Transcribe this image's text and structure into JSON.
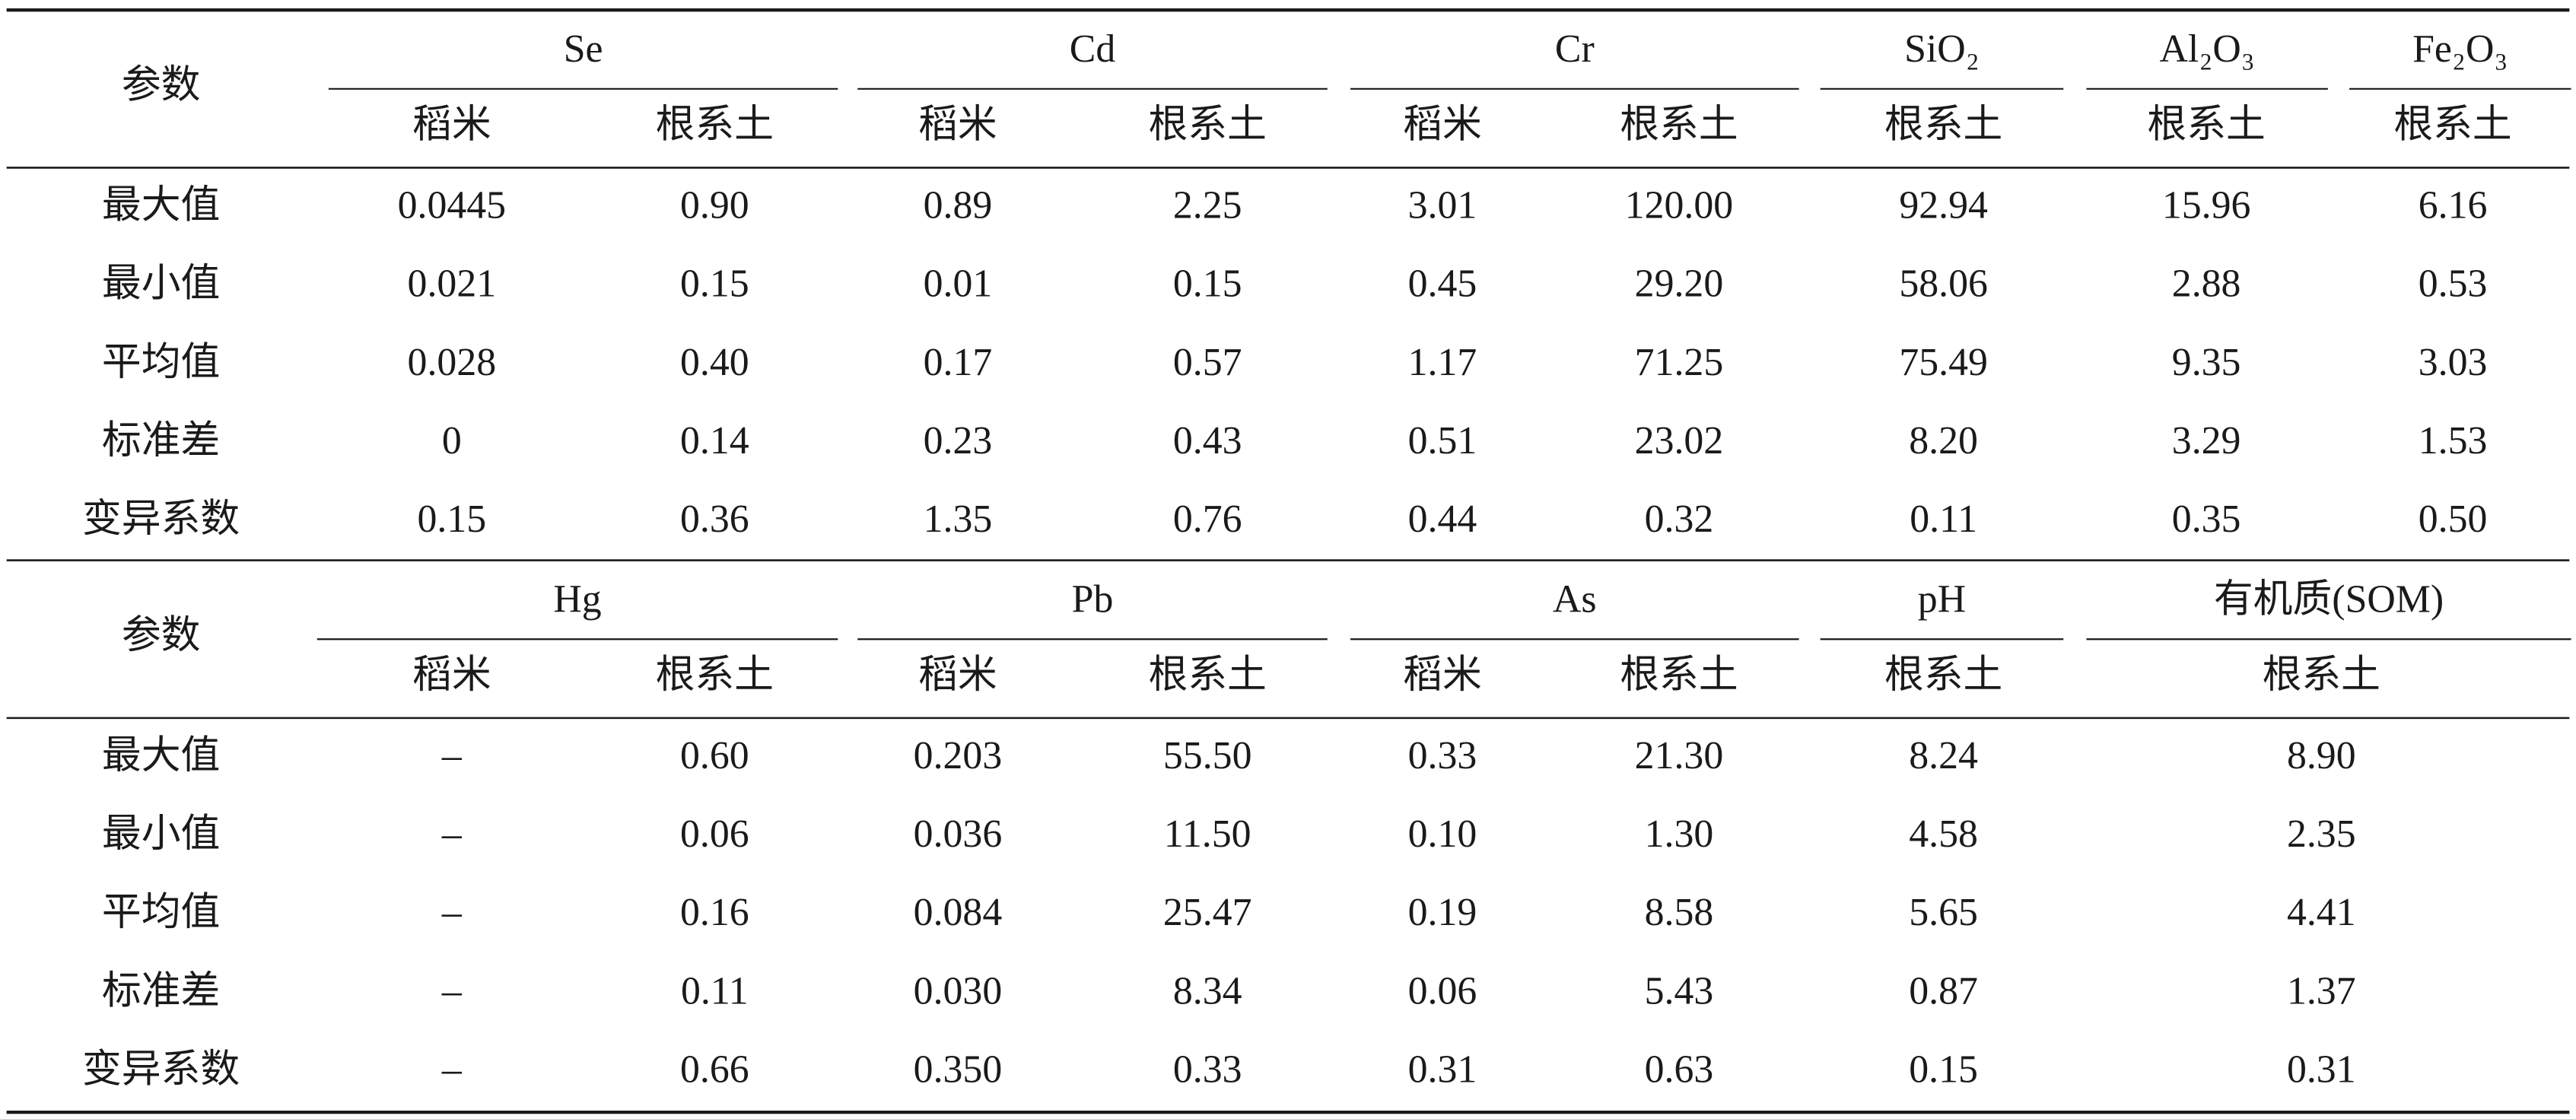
{
  "tables": [
    {
      "header": {
        "param": "参数",
        "groups": [
          {
            "name": "Se",
            "subs": [
              "稻米",
              "根系土"
            ]
          },
          {
            "name": "Cd",
            "subs": [
              "稻米",
              "根系土"
            ]
          },
          {
            "name": "Cr",
            "subs": [
              "稻米",
              "根系土"
            ]
          },
          {
            "name": "SiO₂",
            "subs": [
              "根系土"
            ]
          },
          {
            "name": "Al₂O₃",
            "subs": [
              "根系土"
            ]
          },
          {
            "name": "Fe₂O₃",
            "subs": [
              "根系土"
            ]
          }
        ]
      },
      "rows": [
        {
          "label": "最大值",
          "values": [
            "0.0445",
            "0.90",
            "0.89",
            "2.25",
            "3.01",
            "120.00",
            "92.94",
            "15.96",
            "6.16"
          ]
        },
        {
          "label": "最小值",
          "values": [
            "0.021",
            "0.15",
            "0.01",
            "0.15",
            "0.45",
            "29.20",
            "58.06",
            "2.88",
            "0.53"
          ]
        },
        {
          "label": "平均值",
          "values": [
            "0.028",
            "0.40",
            "0.17",
            "0.57",
            "1.17",
            "71.25",
            "75.49",
            "9.35",
            "3.03"
          ]
        },
        {
          "label": "标准差",
          "values": [
            "0",
            "0.14",
            "0.23",
            "0.43",
            "0.51",
            "23.02",
            "8.20",
            "3.29",
            "1.53"
          ]
        },
        {
          "label": "变异系数",
          "values": [
            "0.15",
            "0.36",
            "1.35",
            "0.76",
            "0.44",
            "0.32",
            "0.11",
            "0.35",
            "0.50"
          ]
        }
      ]
    },
    {
      "header": {
        "param": "参数",
        "groups": [
          {
            "name": "Hg",
            "subs": [
              "稻米",
              "根系土"
            ]
          },
          {
            "name": "Pb",
            "subs": [
              "稻米",
              "根系土"
            ]
          },
          {
            "name": "As",
            "subs": [
              "稻米",
              "根系土"
            ]
          },
          {
            "name": "pH",
            "subs": [
              "根系土"
            ]
          },
          {
            "name": "有机质(SOM)",
            "subs": [
              "根系土"
            ]
          }
        ]
      },
      "rows": [
        {
          "label": "最大值",
          "values": [
            "–",
            "0.60",
            "0.203",
            "55.50",
            "0.33",
            "21.30",
            "8.24",
            "8.90"
          ]
        },
        {
          "label": "最小值",
          "values": [
            "–",
            "0.06",
            "0.036",
            "11.50",
            "0.10",
            "1.30",
            "4.58",
            "2.35"
          ]
        },
        {
          "label": "平均值",
          "values": [
            "–",
            "0.16",
            "0.084",
            "25.47",
            "0.19",
            "8.58",
            "5.65",
            "4.41"
          ]
        },
        {
          "label": "标准差",
          "values": [
            "–",
            "0.11",
            "0.030",
            "8.34",
            "0.06",
            "5.43",
            "0.87",
            "1.37"
          ]
        },
        {
          "label": "变异系数",
          "values": [
            "–",
            "0.66",
            "0.350",
            "0.33",
            "0.31",
            "0.63",
            "0.15",
            "0.31"
          ]
        }
      ]
    }
  ]
}
